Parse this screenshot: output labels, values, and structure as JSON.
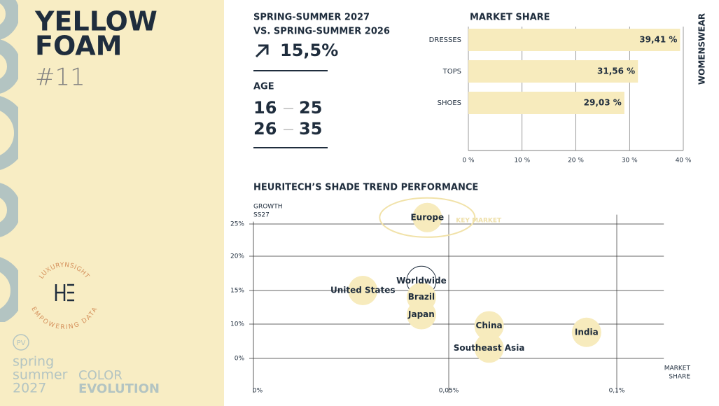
{
  "sidebar": {
    "title": [
      "YELLOW",
      "FOAM"
    ],
    "number": "#11",
    "logo_top": "LUXURYNSIGHT",
    "logo_bottom": "EMPOWERING DATA",
    "badge": "PV",
    "season": [
      "spring",
      "summer",
      "2027"
    ],
    "series_name": [
      "COLOR",
      "EVOLUTION"
    ]
  },
  "summary": {
    "period": [
      "SPRING-SUMMER 2027",
      "VS. SPRING-SUMMER 2026"
    ],
    "growth": "15,5%",
    "age_title": "AGE",
    "age_ranges": [
      [
        "16",
        "25"
      ],
      [
        "26",
        "35"
      ]
    ]
  },
  "chart_data": [
    {
      "type": "bar",
      "orientation": "horizontal",
      "title": "MARKET SHARE",
      "side_label": "WOMENSWEAR",
      "categories": [
        "DRESSES",
        "TOPS",
        "SHOES"
      ],
      "values": [
        39.41,
        31.56,
        29.03
      ],
      "value_labels": [
        "39,41 %",
        "31,56 %",
        "29,03 %"
      ],
      "color": "#f7ebbd",
      "xlim": [
        0,
        40
      ],
      "xticks": [
        {
          "value": 0,
          "label": "0 %"
        },
        {
          "value": 10,
          "label": "10 %"
        },
        {
          "value": 20,
          "label": "20 %"
        },
        {
          "value": 30,
          "label": "30 %"
        },
        {
          "value": 40,
          "label": "40 %"
        }
      ],
      "grid": true
    },
    {
      "type": "scatter",
      "title": "HEURITECH’S SHADE TREND PERFORMANCE",
      "ylabel": [
        "GROWTH",
        "SS27"
      ],
      "xlabel": [
        "MARKET",
        "SHARE"
      ],
      "annotation": "KEY MARKET",
      "labels": [
        "Europe",
        "United States",
        "Worldwide",
        "Brazil",
        "Japan",
        "China",
        "India",
        "Southeast Asia"
      ],
      "x": [
        0.0445,
        0.028,
        0.043,
        0.043,
        0.043,
        0.062,
        0.091,
        0.062
      ],
      "y": [
        26,
        15,
        16.4,
        14,
        11.4,
        9.5,
        7.6,
        3
      ],
      "marker_styles": [
        "filled",
        "filled",
        "outline",
        "filled",
        "filled",
        "filled",
        "filled",
        "filled"
      ],
      "color": "#f7ebbd",
      "xlim": [
        0,
        0.114
      ],
      "ylim": [
        -7,
        27
      ],
      "xticks": [
        {
          "value": 0,
          "label": "0%"
        },
        {
          "value": 0.05,
          "label": "0,05%"
        },
        {
          "value": 0.1,
          "label": "0,1%"
        }
      ],
      "yticks": [
        {
          "value": 0,
          "label": "0%"
        },
        {
          "value": 10,
          "label": "10%"
        },
        {
          "value": 15,
          "label": "15%"
        },
        {
          "value": 20,
          "label": "20%"
        },
        {
          "value": 25,
          "label": "25%"
        }
      ],
      "grid": true
    }
  ]
}
